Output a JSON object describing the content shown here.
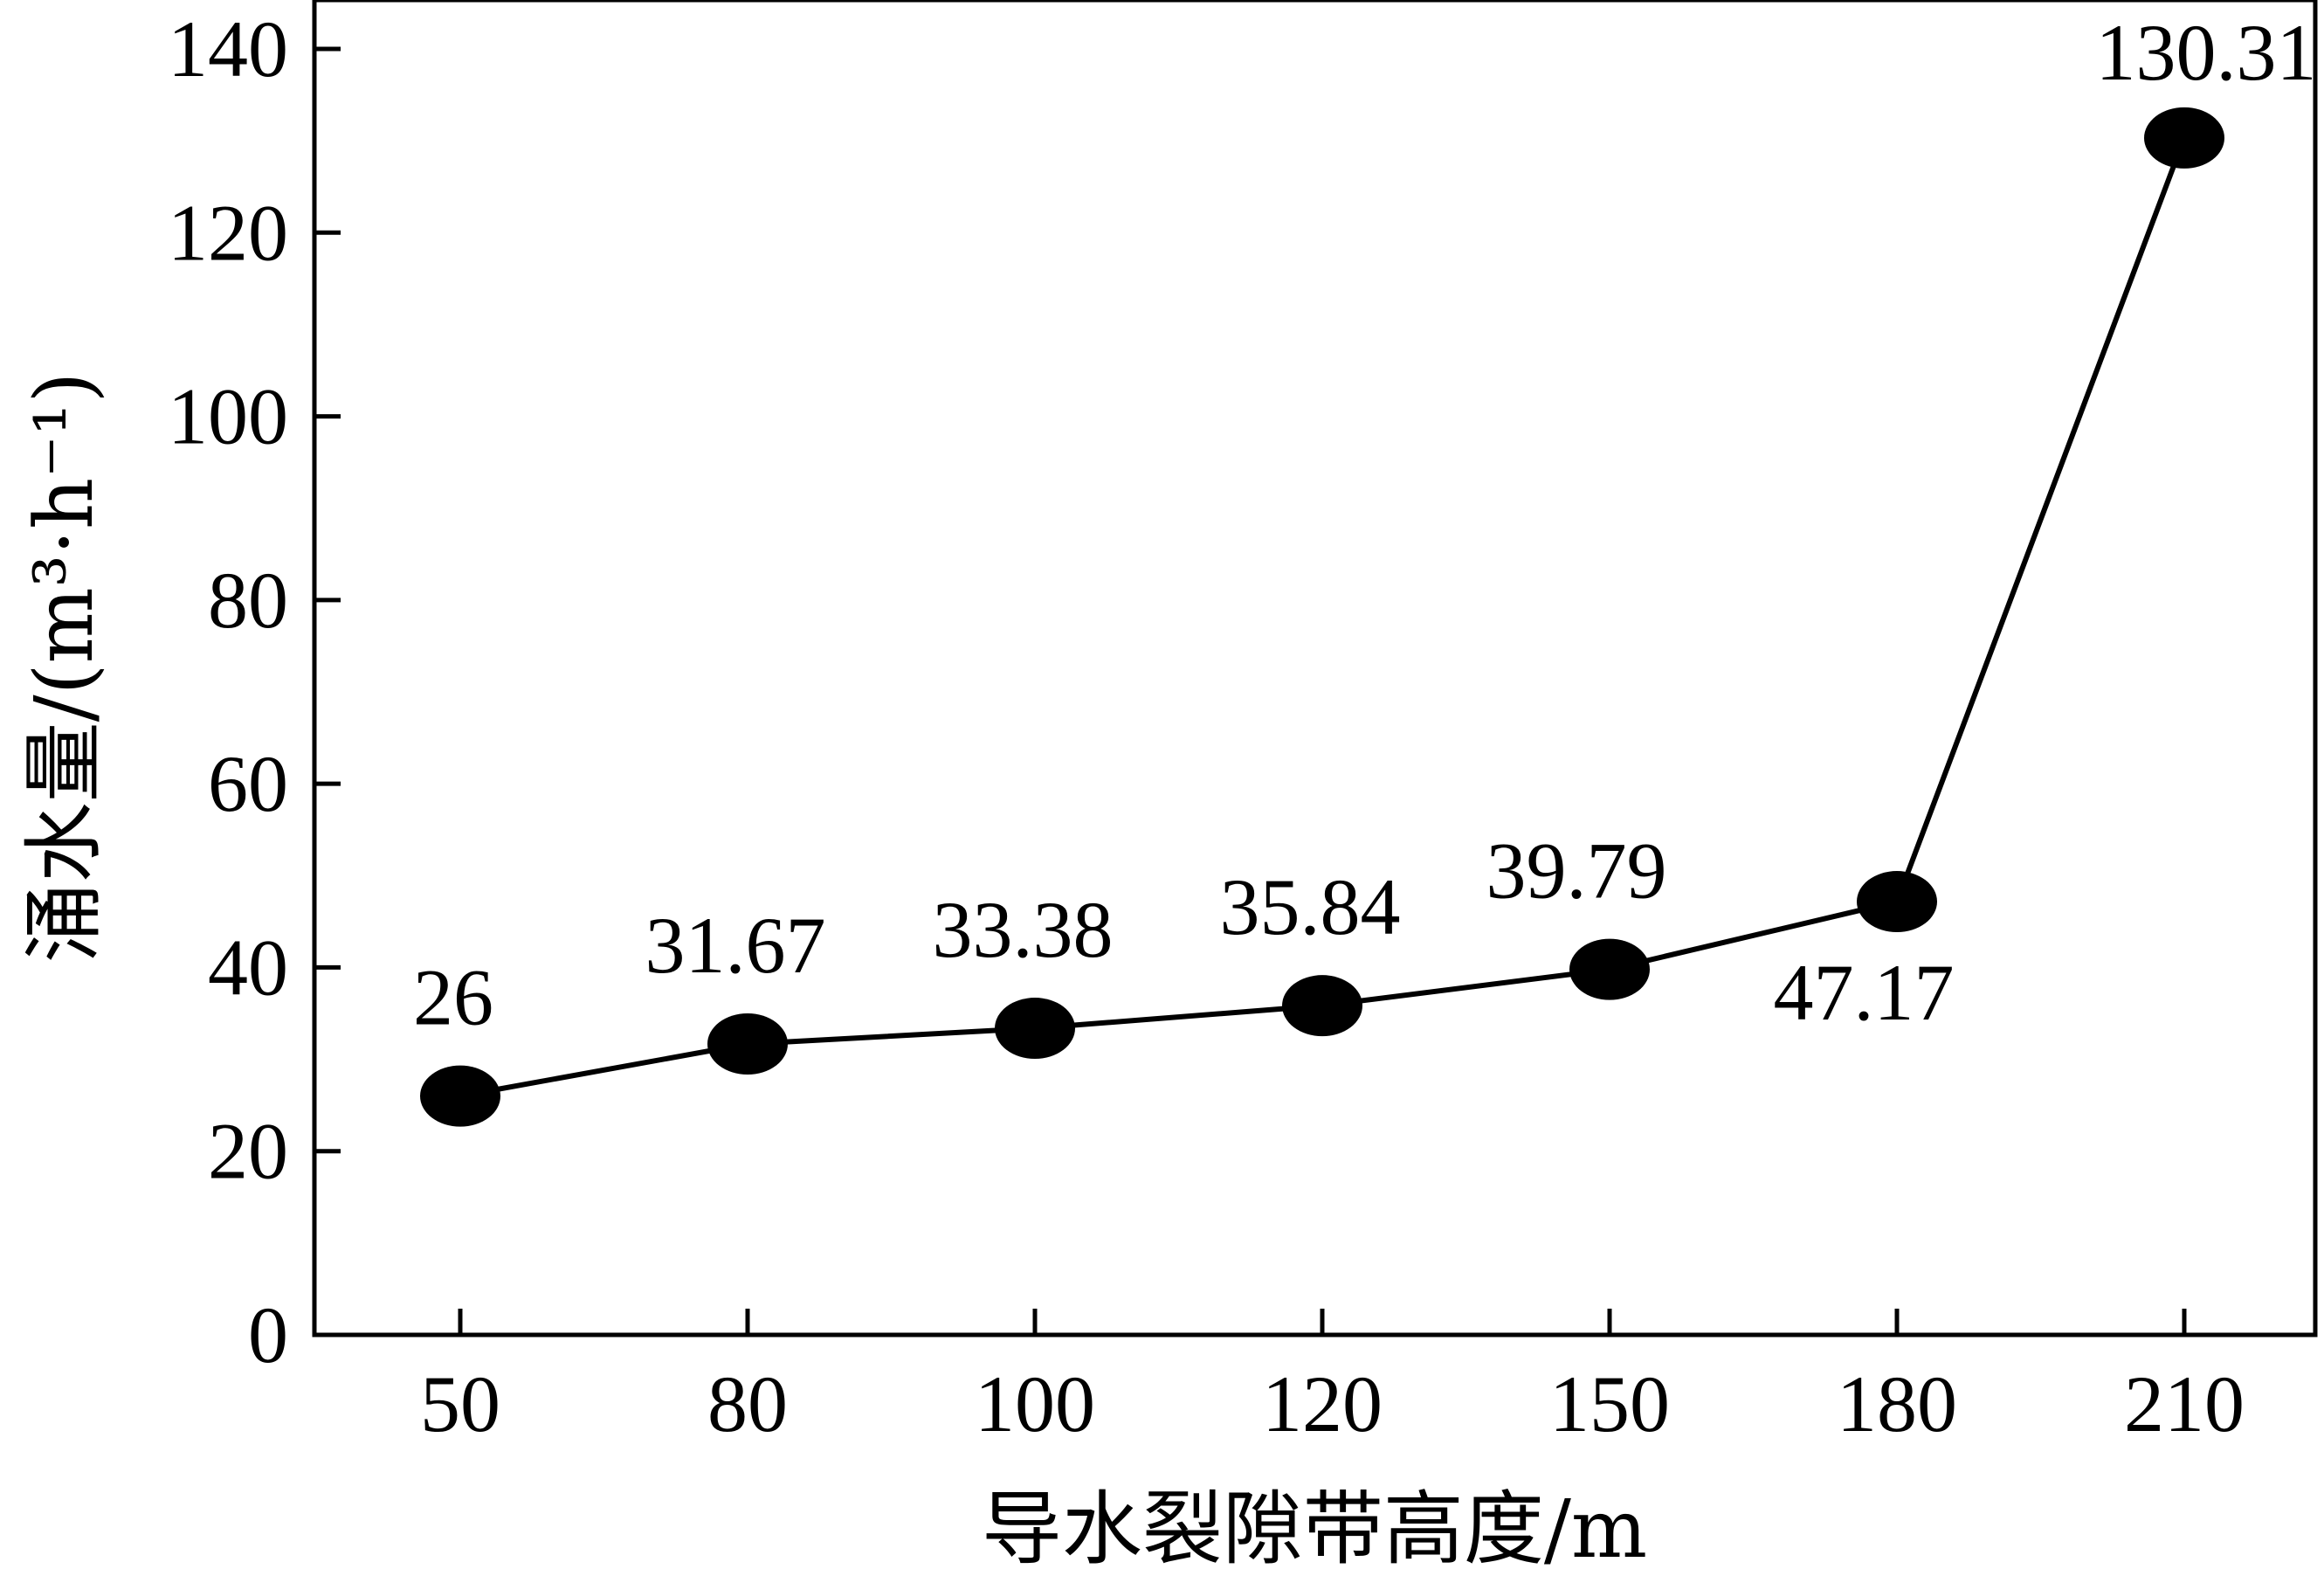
{
  "chart_data": {
    "type": "line",
    "title": "",
    "xlabel": "导水裂隙带高度/m",
    "ylabel": "涌水量/(m³·h⁻¹)",
    "categories": [
      "50",
      "80",
      "100",
      "120",
      "150",
      "180",
      "210"
    ],
    "series": [
      {
        "values": [
          26,
          31.67,
          33.38,
          35.84,
          39.79,
          47.17,
          130.31
        ]
      }
    ],
    "data_labels": [
      "26",
      "31.67",
      "33.38",
      "35.84",
      "39.79",
      "47.17",
      "130.31"
    ],
    "yticks": [
      "0",
      "20",
      "40",
      "60",
      "80",
      "100",
      "120",
      "140"
    ],
    "ylim": [
      0,
      140
    ],
    "grid": false,
    "legend": "none",
    "colors": {
      "line": "#000000",
      "marker": "#000000",
      "frame": "#000000"
    }
  }
}
